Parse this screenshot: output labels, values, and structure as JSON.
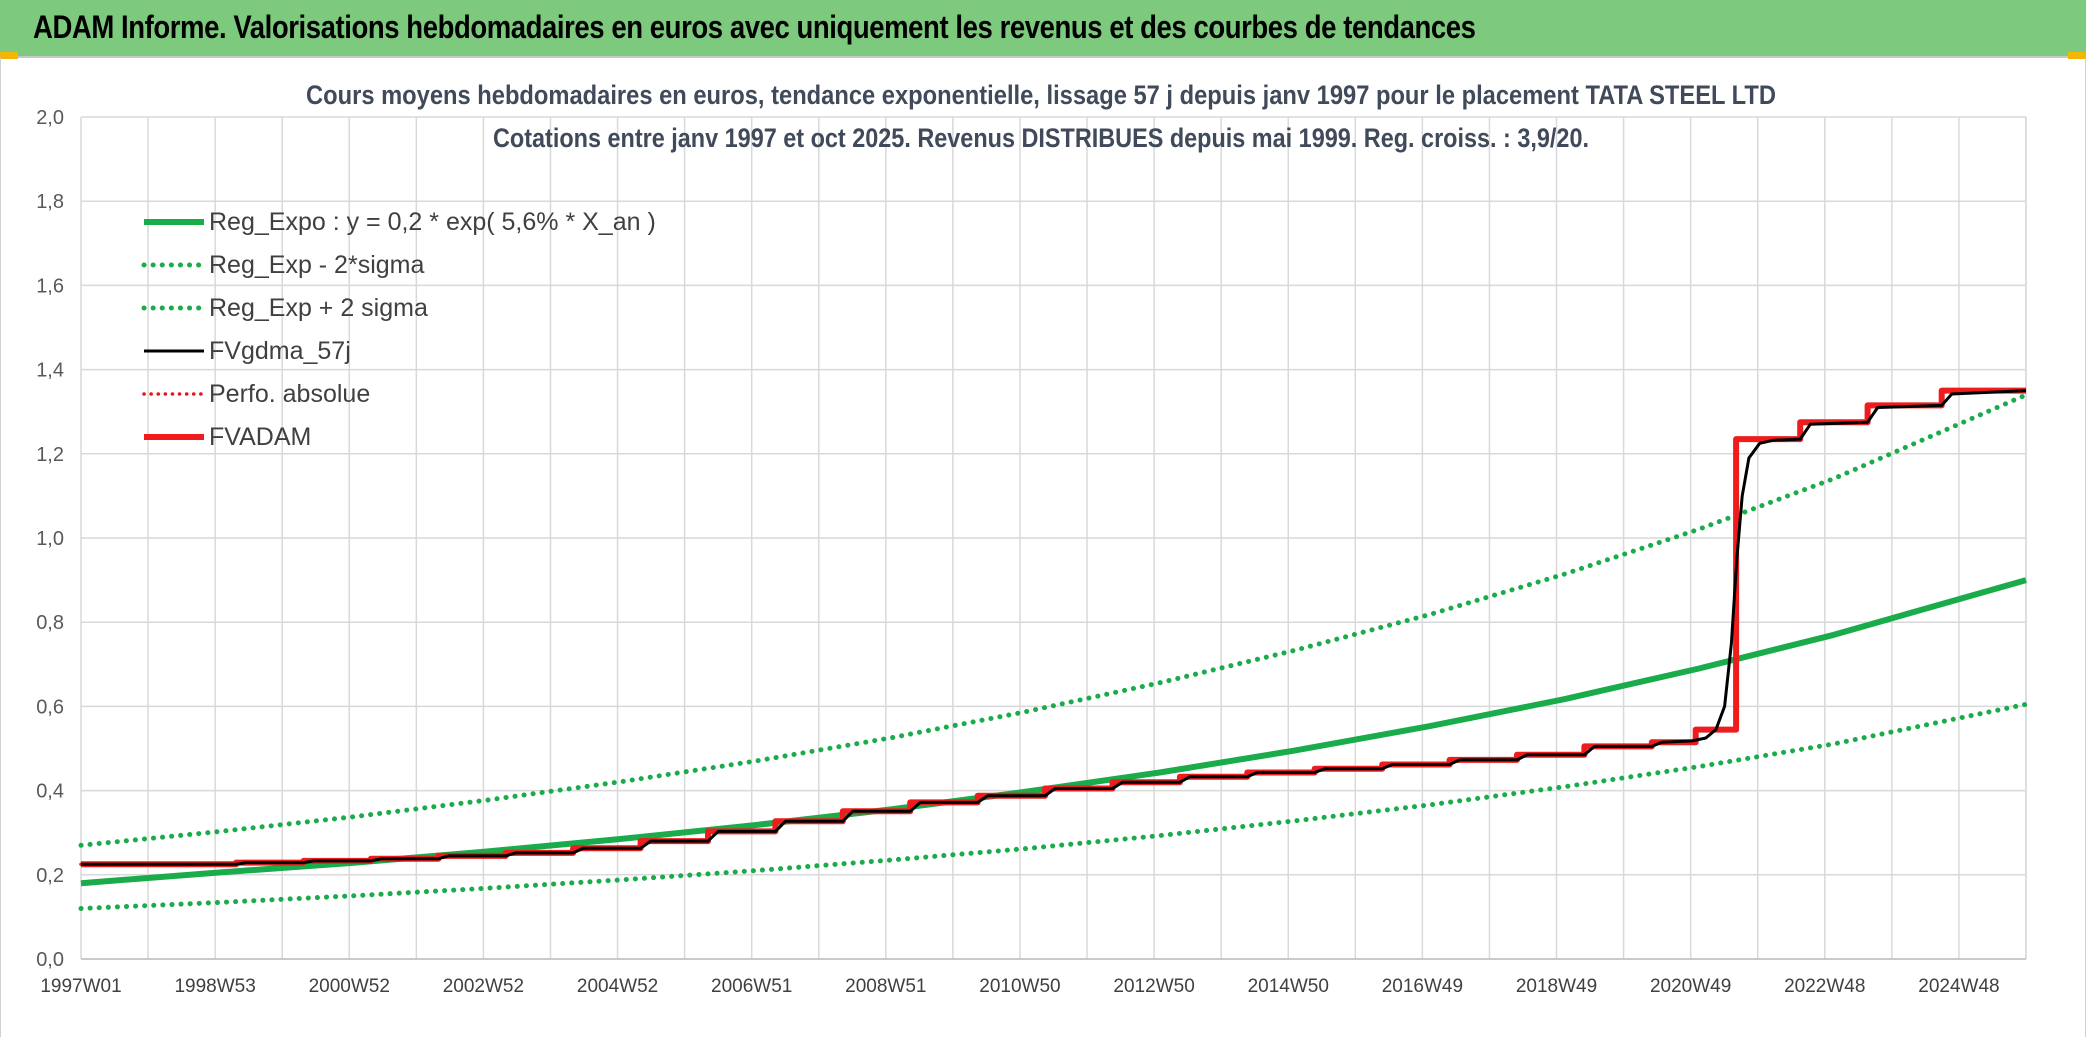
{
  "header": {
    "title": "ADAM Informe. Valorisations hebdomadaires en euros avec uniquement les revenus et des courbes de tendances"
  },
  "colors": {
    "header_bg": "#7dc97d",
    "reg_expo": "#1aab4b",
    "sigma": "#1aab4b",
    "fvgdma": "#000000",
    "perfo": "#e8141b",
    "fvadam": "#ee1c1c",
    "grid": "#d9d9d9",
    "corner_accent": "#f2b705"
  },
  "chart_data": {
    "type": "line",
    "title": "Cours moyens hebdomadaires en euros, tendance exponentielle, lissage 57 j depuis janv 1997 pour le placement TATA STEEL LTD",
    "subtitle": "Cotations entre janv 1997 et oct 2025. Revenus DISTRIBUES depuis mai 1999. Reg. croiss. : 3,9/20.",
    "xlabel": "",
    "ylabel": "",
    "ylim": [
      0,
      2.0
    ],
    "xlim": [
      1997.0,
      2025.85
    ],
    "y_ticks": [
      "0,0",
      "0,2",
      "0,4",
      "0,6",
      "0,8",
      "1,0",
      "1,2",
      "1,4",
      "1,6",
      "1,8",
      "2,0"
    ],
    "x_tick_labels": [
      "1997W01",
      "1998W53",
      "2000W52",
      "2002W52",
      "2004W52",
      "2006W51",
      "2008W51",
      "2010W50",
      "2012W50",
      "2014W50",
      "2016W49",
      "2018W49",
      "2020W49",
      "2022W48",
      "2024W48"
    ],
    "grid": true,
    "legend_position": "top-left",
    "series": [
      {
        "name": "Reg_Expo : y = 0,2 * exp( 5,6% *  X_an )",
        "style": "solid-thick",
        "points": [
          [
            1997.0,
            0.18
          ],
          [
            1999.0,
            0.205
          ],
          [
            2001.0,
            0.228
          ],
          [
            2003.0,
            0.255
          ],
          [
            2005.0,
            0.285
          ],
          [
            2007.0,
            0.318
          ],
          [
            2009.0,
            0.355
          ],
          [
            2011.0,
            0.397
          ],
          [
            2013.0,
            0.443
          ],
          [
            2015.0,
            0.495
          ],
          [
            2017.0,
            0.553
          ],
          [
            2019.0,
            0.617
          ],
          [
            2021.0,
            0.69
          ],
          [
            2023.0,
            0.77
          ],
          [
            2025.85,
            0.9
          ]
        ]
      },
      {
        "name": "Reg_Exp - 2*sigma",
        "style": "dotted",
        "points": [
          [
            1997.0,
            0.12
          ],
          [
            1999.0,
            0.134
          ],
          [
            2001.0,
            0.15
          ],
          [
            2003.0,
            0.168
          ],
          [
            2005.0,
            0.188
          ],
          [
            2007.0,
            0.21
          ],
          [
            2009.0,
            0.235
          ],
          [
            2011.0,
            0.262
          ],
          [
            2013.0,
            0.293
          ],
          [
            2015.0,
            0.328
          ],
          [
            2017.0,
            0.366
          ],
          [
            2019.0,
            0.409
          ],
          [
            2021.0,
            0.457
          ],
          [
            2023.0,
            0.511
          ],
          [
            2025.85,
            0.605
          ]
        ]
      },
      {
        "name": "Reg_Exp + 2 sigma",
        "style": "dotted",
        "points": [
          [
            1997.0,
            0.27
          ],
          [
            1999.0,
            0.302
          ],
          [
            2001.0,
            0.337
          ],
          [
            2003.0,
            0.377
          ],
          [
            2005.0,
            0.421
          ],
          [
            2007.0,
            0.47
          ],
          [
            2009.0,
            0.525
          ],
          [
            2011.0,
            0.587
          ],
          [
            2013.0,
            0.656
          ],
          [
            2015.0,
            0.733
          ],
          [
            2017.0,
            0.818
          ],
          [
            2019.0,
            0.914
          ],
          [
            2021.0,
            1.021
          ],
          [
            2023.0,
            1.141
          ],
          [
            2025.85,
            1.34
          ]
        ]
      },
      {
        "name": "FVgdma_57j",
        "style": "solid-thin",
        "points": [
          [
            1997.0,
            0.225
          ],
          [
            1999.3,
            0.225
          ],
          [
            1999.45,
            0.229
          ],
          [
            2000.3,
            0.229
          ],
          [
            2000.45,
            0.233
          ],
          [
            2001.3,
            0.233
          ],
          [
            2001.45,
            0.238
          ],
          [
            2002.3,
            0.238
          ],
          [
            2002.45,
            0.245
          ],
          [
            2003.3,
            0.245
          ],
          [
            2003.45,
            0.252
          ],
          [
            2004.3,
            0.252
          ],
          [
            2004.45,
            0.263
          ],
          [
            2005.3,
            0.263
          ],
          [
            2005.45,
            0.28
          ],
          [
            2006.3,
            0.28
          ],
          [
            2006.45,
            0.303
          ],
          [
            2007.3,
            0.303
          ],
          [
            2007.45,
            0.327
          ],
          [
            2008.3,
            0.327
          ],
          [
            2008.45,
            0.351
          ],
          [
            2009.3,
            0.351
          ],
          [
            2009.45,
            0.372
          ],
          [
            2010.3,
            0.372
          ],
          [
            2010.45,
            0.388
          ],
          [
            2011.3,
            0.388
          ],
          [
            2011.45,
            0.405
          ],
          [
            2012.3,
            0.405
          ],
          [
            2012.45,
            0.42
          ],
          [
            2013.3,
            0.42
          ],
          [
            2013.45,
            0.433
          ],
          [
            2014.3,
            0.433
          ],
          [
            2014.45,
            0.443
          ],
          [
            2015.3,
            0.443
          ],
          [
            2015.45,
            0.452
          ],
          [
            2016.3,
            0.452
          ],
          [
            2016.45,
            0.462
          ],
          [
            2017.3,
            0.462
          ],
          [
            2017.45,
            0.473
          ],
          [
            2018.3,
            0.473
          ],
          [
            2018.45,
            0.485
          ],
          [
            2019.3,
            0.485
          ],
          [
            2019.45,
            0.505
          ],
          [
            2020.3,
            0.505
          ],
          [
            2020.45,
            0.515
          ],
          [
            2020.9,
            0.518
          ],
          [
            2021.1,
            0.525
          ],
          [
            2021.25,
            0.545
          ],
          [
            2021.38,
            0.6
          ],
          [
            2021.48,
            0.75
          ],
          [
            2021.56,
            0.95
          ],
          [
            2021.64,
            1.1
          ],
          [
            2021.74,
            1.19
          ],
          [
            2021.9,
            1.225
          ],
          [
            2022.1,
            1.232
          ],
          [
            2022.5,
            1.235
          ],
          [
            2022.65,
            1.27
          ],
          [
            2023.5,
            1.275
          ],
          [
            2023.65,
            1.31
          ],
          [
            2024.6,
            1.315
          ],
          [
            2024.75,
            1.342
          ],
          [
            2025.85,
            1.35
          ]
        ]
      },
      {
        "name": "Perfo. absolue",
        "style": "dotted-red",
        "points": [
          [
            1997.0,
            0.225
          ],
          [
            1999.3,
            0.225
          ],
          [
            1999.3,
            0.229
          ],
          [
            2000.3,
            0.229
          ],
          [
            2000.3,
            0.233
          ],
          [
            2001.3,
            0.233
          ],
          [
            2001.3,
            0.238
          ],
          [
            2002.3,
            0.238
          ],
          [
            2002.3,
            0.245
          ],
          [
            2003.3,
            0.245
          ],
          [
            2003.3,
            0.252
          ],
          [
            2004.3,
            0.252
          ],
          [
            2004.3,
            0.263
          ],
          [
            2005.3,
            0.263
          ],
          [
            2005.3,
            0.28
          ],
          [
            2006.3,
            0.28
          ],
          [
            2006.3,
            0.303
          ],
          [
            2007.3,
            0.303
          ],
          [
            2007.3,
            0.327
          ],
          [
            2008.3,
            0.327
          ],
          [
            2008.3,
            0.351
          ],
          [
            2009.3,
            0.351
          ],
          [
            2009.3,
            0.372
          ],
          [
            2010.3,
            0.372
          ],
          [
            2010.3,
            0.388
          ],
          [
            2011.3,
            0.388
          ],
          [
            2011.3,
            0.405
          ],
          [
            2012.3,
            0.405
          ],
          [
            2012.3,
            0.42
          ],
          [
            2013.3,
            0.42
          ],
          [
            2013.3,
            0.433
          ],
          [
            2014.3,
            0.433
          ],
          [
            2014.3,
            0.443
          ],
          [
            2015.3,
            0.443
          ],
          [
            2015.3,
            0.452
          ],
          [
            2016.3,
            0.452
          ],
          [
            2016.3,
            0.462
          ],
          [
            2017.3,
            0.462
          ],
          [
            2017.3,
            0.473
          ],
          [
            2018.3,
            0.473
          ],
          [
            2018.3,
            0.485
          ],
          [
            2019.3,
            0.485
          ],
          [
            2019.3,
            0.505
          ],
          [
            2020.3,
            0.505
          ],
          [
            2020.3,
            0.515
          ],
          [
            2020.95,
            0.515
          ],
          [
            2020.95,
            0.545
          ],
          [
            2021.55,
            0.545
          ],
          [
            2021.55,
            1.235
          ],
          [
            2022.5,
            1.235
          ],
          [
            2022.5,
            1.275
          ],
          [
            2023.5,
            1.275
          ],
          [
            2023.5,
            1.315
          ],
          [
            2024.6,
            1.315
          ],
          [
            2024.6,
            1.35
          ],
          [
            2025.85,
            1.35
          ]
        ]
      },
      {
        "name": "FVADAM",
        "style": "solid-thick-red",
        "points": [
          [
            1997.0,
            0.225
          ],
          [
            1999.3,
            0.225
          ],
          [
            1999.3,
            0.229
          ],
          [
            2000.3,
            0.229
          ],
          [
            2000.3,
            0.233
          ],
          [
            2001.3,
            0.233
          ],
          [
            2001.3,
            0.238
          ],
          [
            2002.3,
            0.238
          ],
          [
            2002.3,
            0.245
          ],
          [
            2003.3,
            0.245
          ],
          [
            2003.3,
            0.252
          ],
          [
            2004.3,
            0.252
          ],
          [
            2004.3,
            0.263
          ],
          [
            2005.3,
            0.263
          ],
          [
            2005.3,
            0.28
          ],
          [
            2006.3,
            0.28
          ],
          [
            2006.3,
            0.303
          ],
          [
            2007.3,
            0.303
          ],
          [
            2007.3,
            0.327
          ],
          [
            2008.3,
            0.327
          ],
          [
            2008.3,
            0.351
          ],
          [
            2009.3,
            0.351
          ],
          [
            2009.3,
            0.372
          ],
          [
            2010.3,
            0.372
          ],
          [
            2010.3,
            0.388
          ],
          [
            2011.3,
            0.388
          ],
          [
            2011.3,
            0.405
          ],
          [
            2012.3,
            0.405
          ],
          [
            2012.3,
            0.42
          ],
          [
            2013.3,
            0.42
          ],
          [
            2013.3,
            0.433
          ],
          [
            2014.3,
            0.433
          ],
          [
            2014.3,
            0.443
          ],
          [
            2015.3,
            0.443
          ],
          [
            2015.3,
            0.452
          ],
          [
            2016.3,
            0.452
          ],
          [
            2016.3,
            0.462
          ],
          [
            2017.3,
            0.462
          ],
          [
            2017.3,
            0.473
          ],
          [
            2018.3,
            0.473
          ],
          [
            2018.3,
            0.485
          ],
          [
            2019.3,
            0.485
          ],
          [
            2019.3,
            0.505
          ],
          [
            2020.3,
            0.505
          ],
          [
            2020.3,
            0.515
          ],
          [
            2020.95,
            0.515
          ],
          [
            2020.95,
            0.545
          ],
          [
            2021.55,
            0.545
          ],
          [
            2021.55,
            1.235
          ],
          [
            2022.5,
            1.235
          ],
          [
            2022.5,
            1.275
          ],
          [
            2023.5,
            1.275
          ],
          [
            2023.5,
            1.315
          ],
          [
            2024.6,
            1.315
          ],
          [
            2024.6,
            1.35
          ],
          [
            2025.85,
            1.35
          ]
        ]
      }
    ]
  }
}
